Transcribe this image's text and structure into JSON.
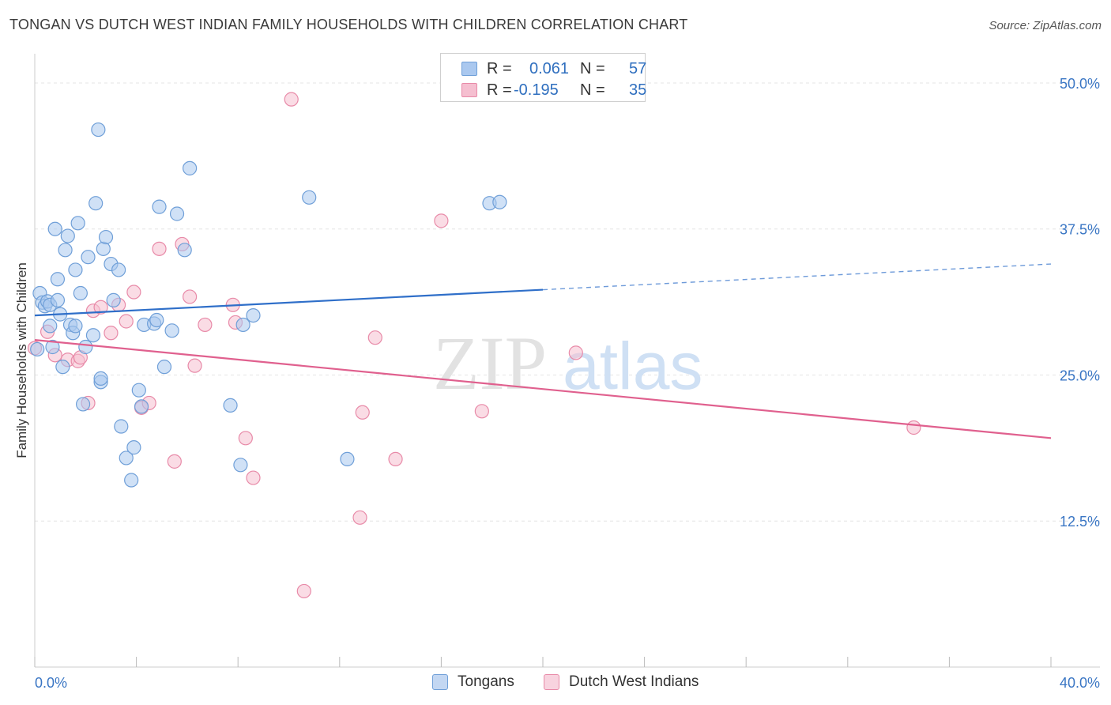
{
  "title": "TONGAN VS DUTCH WEST INDIAN FAMILY HOUSEHOLDS WITH CHILDREN CORRELATION CHART",
  "source": "Source: ZipAtlas.com",
  "watermark": {
    "zip": "ZIP",
    "atlas": "atlas"
  },
  "legend": {
    "rows": [
      {
        "r_label": "R =",
        "r_value": "0.061",
        "n_label": "N =",
        "n_value": "57"
      },
      {
        "r_label": "R =",
        "r_value": "-0.195",
        "n_label": "N =",
        "n_value": "35"
      }
    ]
  },
  "bottom_legend": [
    "Tongans",
    "Dutch West Indians"
  ],
  "colors": {
    "blue_fill": "#aac8ef",
    "blue_stroke": "#6f9fd8",
    "blue_line": "#2f6fc9",
    "pink_fill": "#f5bfd0",
    "pink_stroke": "#e88aa8",
    "pink_line": "#e0608e",
    "tick_label": "#3a76c4",
    "grid": "#e4e4e4"
  },
  "chart_data": {
    "type": "scatter",
    "title": "TONGAN VS DUTCH WEST INDIAN FAMILY HOUSEHOLDS WITH CHILDREN CORRELATION CHART",
    "xlabel": "",
    "ylabel": "Family Households with Children",
    "xlim": [
      0,
      40
    ],
    "ylim": [
      0,
      52.5
    ],
    "x_tick_labels": [
      "0.0%",
      "40.0%"
    ],
    "y_ticks": [
      12.5,
      25.0,
      37.5,
      50.0
    ],
    "y_tick_labels": [
      "12.5%",
      "25.0%",
      "37.5%",
      "50.0%"
    ],
    "grid": true,
    "legend_position": "top-center",
    "series": [
      {
        "name": "Tongans",
        "r": 0.061,
        "n": 57,
        "trend": {
          "x0": 0,
          "y0": 30.1,
          "x1": 20,
          "y1": 32.3,
          "dash_to_x": 40,
          "dash_to_y": 34.5
        },
        "points": [
          [
            0.2,
            32.0
          ],
          [
            0.3,
            31.2
          ],
          [
            0.4,
            30.9
          ],
          [
            0.5,
            31.3
          ],
          [
            0.6,
            31.0
          ],
          [
            0.6,
            29.2
          ],
          [
            0.7,
            27.4
          ],
          [
            0.8,
            37.5
          ],
          [
            0.9,
            33.2
          ],
          [
            0.9,
            31.4
          ],
          [
            1.0,
            30.2
          ],
          [
            1.1,
            25.7
          ],
          [
            1.2,
            35.7
          ],
          [
            1.3,
            36.9
          ],
          [
            1.4,
            29.3
          ],
          [
            1.5,
            28.6
          ],
          [
            1.6,
            29.2
          ],
          [
            1.6,
            34.0
          ],
          [
            1.7,
            38.0
          ],
          [
            1.8,
            32.0
          ],
          [
            1.9,
            22.5
          ],
          [
            2.0,
            27.4
          ],
          [
            2.1,
            35.1
          ],
          [
            2.3,
            28.4
          ],
          [
            2.4,
            39.7
          ],
          [
            2.5,
            46.0
          ],
          [
            2.6,
            24.4
          ],
          [
            2.6,
            24.7
          ],
          [
            2.7,
            35.8
          ],
          [
            2.8,
            36.8
          ],
          [
            3.0,
            34.5
          ],
          [
            3.1,
            31.4
          ],
          [
            3.3,
            34.0
          ],
          [
            3.4,
            20.6
          ],
          [
            3.6,
            17.9
          ],
          [
            3.8,
            16.0
          ],
          [
            3.9,
            18.8
          ],
          [
            4.1,
            23.7
          ],
          [
            4.2,
            22.3
          ],
          [
            4.3,
            29.3
          ],
          [
            4.7,
            29.4
          ],
          [
            4.8,
            29.7
          ],
          [
            4.9,
            39.4
          ],
          [
            5.1,
            25.7
          ],
          [
            5.4,
            28.8
          ],
          [
            5.6,
            38.8
          ],
          [
            5.9,
            35.7
          ],
          [
            6.1,
            42.7
          ],
          [
            7.7,
            22.4
          ],
          [
            8.1,
            17.3
          ],
          [
            8.2,
            29.3
          ],
          [
            8.6,
            30.1
          ],
          [
            10.8,
            40.2
          ],
          [
            12.3,
            17.8
          ],
          [
            17.9,
            39.7
          ],
          [
            18.3,
            39.8
          ],
          [
            0.1,
            27.2
          ]
        ]
      },
      {
        "name": "Dutch West Indians",
        "r": -0.195,
        "n": 35,
        "trend": {
          "x0": 0,
          "y0": 28.0,
          "x1": 40,
          "y1": 19.6
        },
        "points": [
          [
            0.0,
            27.3
          ],
          [
            0.5,
            28.7
          ],
          [
            0.8,
            26.7
          ],
          [
            1.3,
            26.3
          ],
          [
            1.7,
            26.2
          ],
          [
            1.8,
            26.5
          ],
          [
            2.1,
            22.6
          ],
          [
            2.3,
            30.5
          ],
          [
            2.6,
            30.8
          ],
          [
            3.0,
            28.6
          ],
          [
            3.3,
            31.0
          ],
          [
            3.6,
            29.6
          ],
          [
            3.9,
            32.1
          ],
          [
            4.2,
            22.2
          ],
          [
            4.5,
            22.6
          ],
          [
            4.9,
            35.8
          ],
          [
            5.5,
            17.6
          ],
          [
            5.8,
            36.2
          ],
          [
            6.1,
            31.7
          ],
          [
            6.3,
            25.8
          ],
          [
            6.7,
            29.3
          ],
          [
            7.8,
            31.0
          ],
          [
            7.9,
            29.5
          ],
          [
            8.3,
            19.6
          ],
          [
            8.6,
            16.2
          ],
          [
            10.1,
            48.6
          ],
          [
            10.6,
            6.5
          ],
          [
            12.8,
            12.8
          ],
          [
            12.9,
            21.8
          ],
          [
            13.4,
            28.2
          ],
          [
            14.2,
            17.8
          ],
          [
            16.0,
            38.2
          ],
          [
            17.6,
            21.9
          ],
          [
            21.3,
            26.9
          ],
          [
            34.6,
            20.5
          ]
        ]
      }
    ]
  }
}
